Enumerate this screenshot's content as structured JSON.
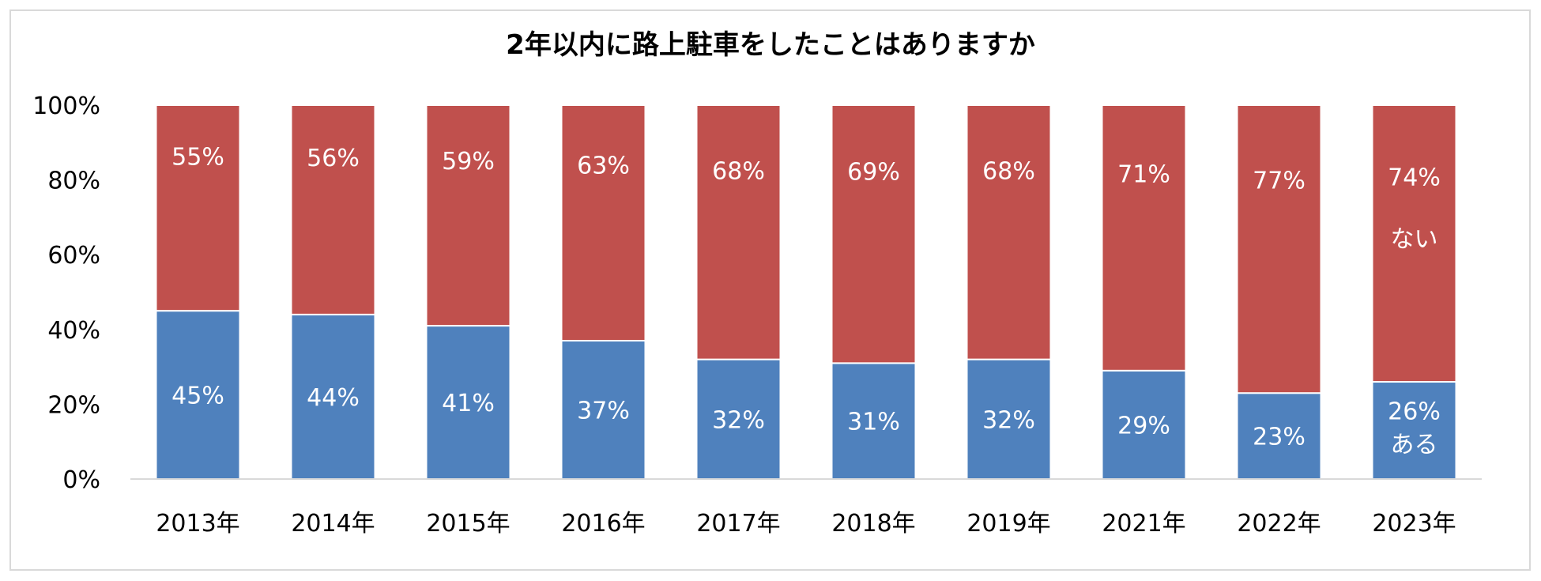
{
  "chart_data": {
    "type": "bar",
    "stacked": true,
    "title": "2年以内に路上駐車をしたことはありますか",
    "categories": [
      "2013年",
      "2014年",
      "2015年",
      "2016年",
      "2017年",
      "2018年",
      "2019年",
      "2021年",
      "2022年",
      "2023年"
    ],
    "series": [
      {
        "name": "ある",
        "color": "#4f81bd",
        "values": [
          45,
          44,
          41,
          37,
          32,
          31,
          32,
          29,
          23,
          26
        ]
      },
      {
        "name": "ない",
        "color": "#c0504d",
        "values": [
          55,
          56,
          59,
          63,
          68,
          69,
          68,
          71,
          77,
          74
        ]
      }
    ],
    "ylim": [
      0,
      100
    ],
    "yticks": [
      "0%",
      "20%",
      "40%",
      "60%",
      "80%",
      "100%"
    ],
    "ytick_values": [
      0,
      20,
      40,
      60,
      80,
      100
    ],
    "value_suffix": "%",
    "xlabel": "",
    "ylabel": "",
    "grid": false,
    "series_label_on_category": "2023年",
    "axis_color": "#d9d9d9"
  }
}
